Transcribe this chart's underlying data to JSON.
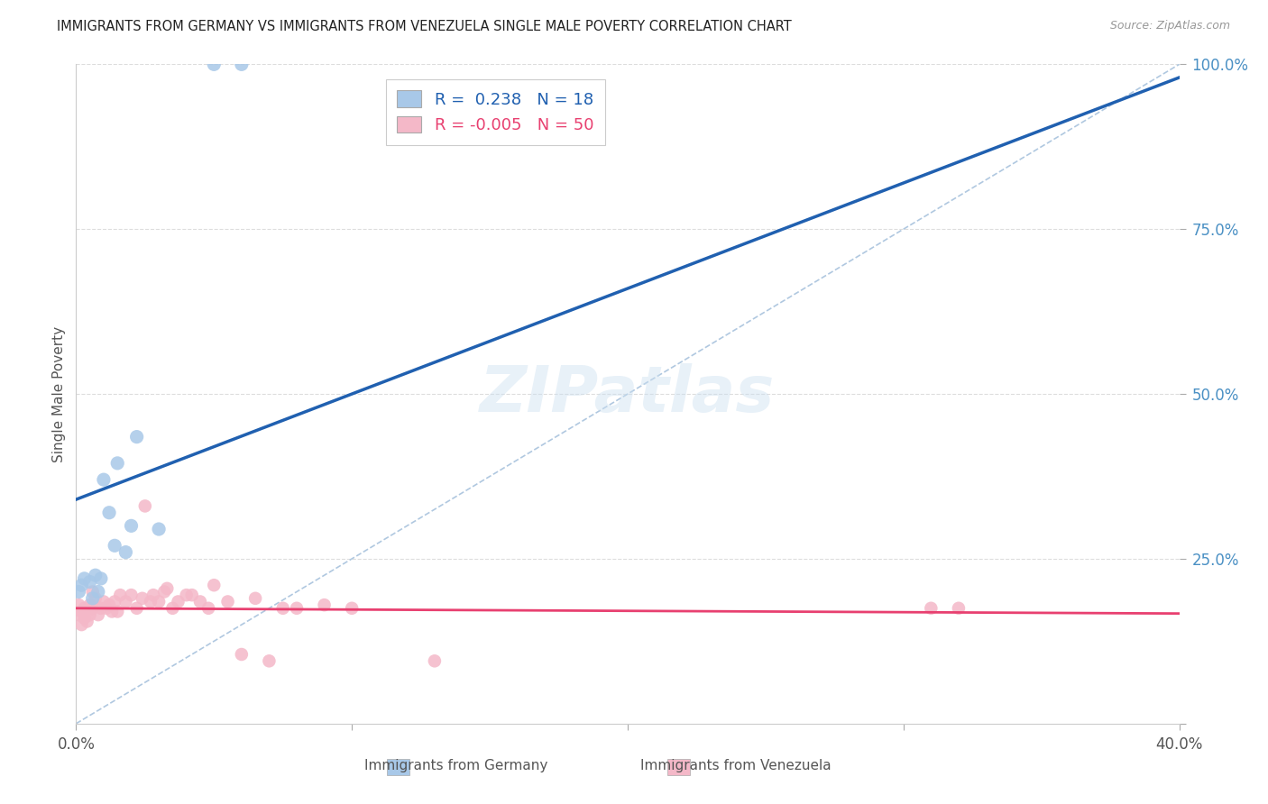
{
  "title": "IMMIGRANTS FROM GERMANY VS IMMIGRANTS FROM VENEZUELA SINGLE MALE POVERTY CORRELATION CHART",
  "source": "Source: ZipAtlas.com",
  "ylabel": "Single Male Poverty",
  "legend_label1": "Immigrants from Germany",
  "legend_label2": "Immigrants from Venezuela",
  "R1": 0.238,
  "N1": 18,
  "R2": -0.005,
  "N2": 50,
  "xlim": [
    0.0,
    0.4
  ],
  "ylim": [
    0.0,
    1.0
  ],
  "xticks": [
    0.0,
    0.1,
    0.2,
    0.3,
    0.4
  ],
  "xtick_labels": [
    "0.0%",
    "",
    "",
    "",
    "40.0%"
  ],
  "ytick_positions": [
    0.0,
    0.25,
    0.5,
    0.75,
    1.0
  ],
  "ytick_labels": [
    "",
    "25.0%",
    "50.0%",
    "75.0%",
    "100.0%"
  ],
  "germany_x": [
    0.001,
    0.002,
    0.003,
    0.005,
    0.006,
    0.007,
    0.008,
    0.009,
    0.01,
    0.012,
    0.014,
    0.015,
    0.018,
    0.02,
    0.022,
    0.03,
    0.05,
    0.06
  ],
  "germany_y": [
    0.2,
    0.21,
    0.22,
    0.215,
    0.19,
    0.225,
    0.2,
    0.22,
    0.37,
    0.32,
    0.27,
    0.395,
    0.26,
    0.3,
    0.435,
    0.295,
    1.0,
    1.0
  ],
  "venezuela_x": [
    0.001,
    0.001,
    0.002,
    0.002,
    0.003,
    0.003,
    0.004,
    0.004,
    0.005,
    0.005,
    0.006,
    0.006,
    0.007,
    0.008,
    0.009,
    0.01,
    0.011,
    0.012,
    0.013,
    0.014,
    0.015,
    0.016,
    0.018,
    0.02,
    0.022,
    0.024,
    0.025,
    0.027,
    0.028,
    0.03,
    0.032,
    0.033,
    0.035,
    0.037,
    0.04,
    0.042,
    0.045,
    0.048,
    0.05,
    0.055,
    0.06,
    0.065,
    0.07,
    0.075,
    0.08,
    0.09,
    0.1,
    0.13,
    0.31,
    0.32
  ],
  "venezuela_y": [
    0.165,
    0.18,
    0.15,
    0.17,
    0.16,
    0.175,
    0.155,
    0.17,
    0.165,
    0.18,
    0.175,
    0.2,
    0.19,
    0.165,
    0.175,
    0.185,
    0.175,
    0.18,
    0.17,
    0.185,
    0.17,
    0.195,
    0.185,
    0.195,
    0.175,
    0.19,
    0.33,
    0.185,
    0.195,
    0.185,
    0.2,
    0.205,
    0.175,
    0.185,
    0.195,
    0.195,
    0.185,
    0.175,
    0.21,
    0.185,
    0.105,
    0.19,
    0.095,
    0.175,
    0.175,
    0.18,
    0.175,
    0.095,
    0.175,
    0.175
  ],
  "germany_color": "#a8c8e8",
  "venezuela_color": "#f4b8c8",
  "trendline_germany_color": "#2060b0",
  "trendline_venezuela_color": "#e84070",
  "diag_color": "#b0c8e0",
  "background_color": "#ffffff",
  "grid_color": "#dddddd",
  "title_color": "#222222",
  "source_color": "#999999",
  "trendline_germany_intercept": 0.34,
  "trendline_germany_slope": 1.6,
  "trendline_venezuela_intercept": 0.175,
  "trendline_venezuela_slope": -0.02
}
